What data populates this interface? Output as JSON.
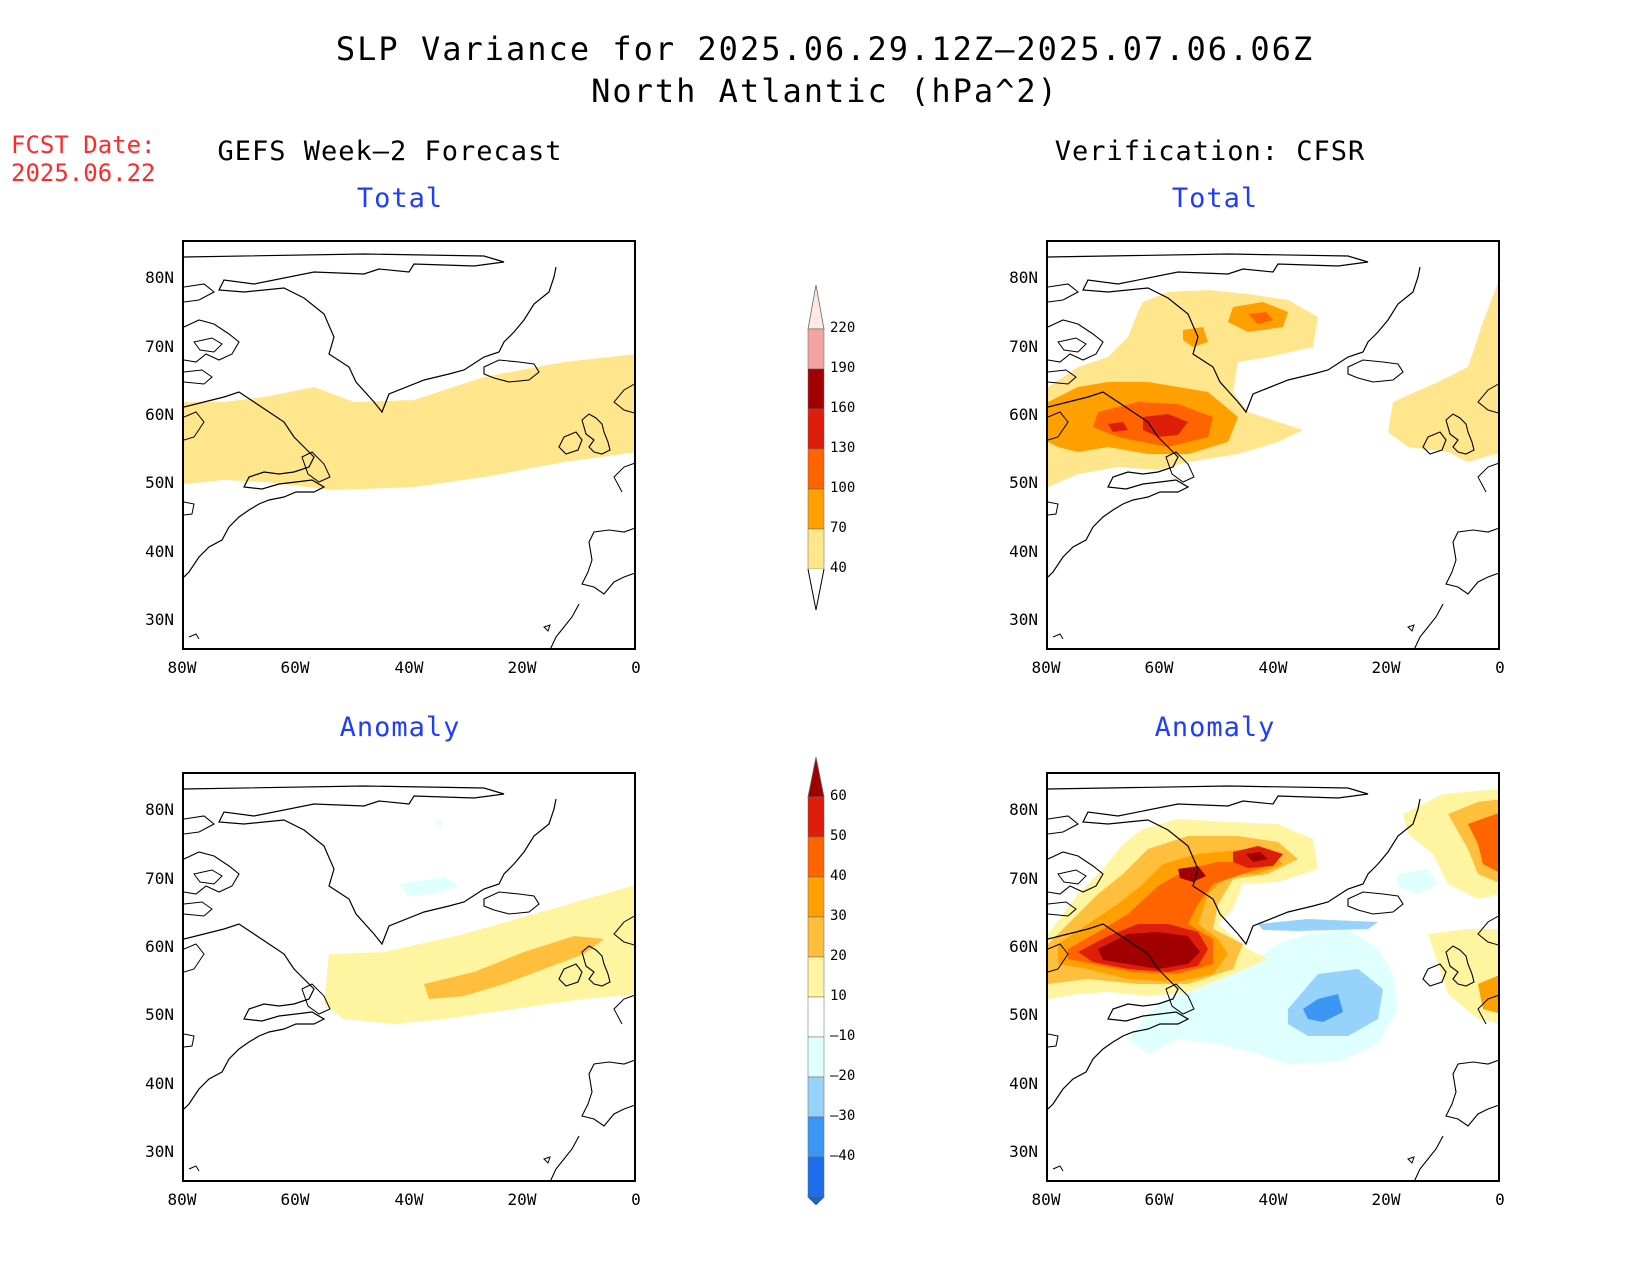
{
  "title_line1": "SLP Variance for 2025.06.29.12Z–2025.07.06.06Z",
  "title_line2": "North Atlantic (hPa^2)",
  "fcst_label": "FCST Date:",
  "fcst_date": "2025.06.22",
  "left_column_title": "GEFS Week–2 Forecast",
  "right_column_title": "Verification: CFSR",
  "panels": {
    "top_left": "Total",
    "top_right": "Total",
    "bottom_left": "Anomaly",
    "bottom_right": "Anomaly"
  },
  "lat_labels": [
    "80N",
    "70N",
    "60N",
    "50N",
    "40N",
    "30N"
  ],
  "lon_labels": [
    "80W",
    "60W",
    "40W",
    "20W",
    "0"
  ],
  "total_colorbar": {
    "labels": [
      "220",
      "190",
      "160",
      "130",
      "100",
      "70",
      "40"
    ],
    "colors": [
      "#fde8e6",
      "#f4a3a3",
      "#a00000",
      "#dc1e0a",
      "#ff6400",
      "#ffa000",
      "#ffe68c"
    ]
  },
  "anomaly_colorbar": {
    "labels": [
      "60",
      "50",
      "40",
      "30",
      "20",
      "10",
      "–10",
      "–20",
      "–30",
      "–40"
    ],
    "colors": [
      "#a00000",
      "#dc1e0a",
      "#ff6400",
      "#ffa000",
      "#ffbe3c",
      "#fff5a0",
      "#ffffff",
      "#e0ffff",
      "#96d2fa",
      "#3c96f5",
      "#1e6eeb",
      "#1464d2"
    ]
  }
}
